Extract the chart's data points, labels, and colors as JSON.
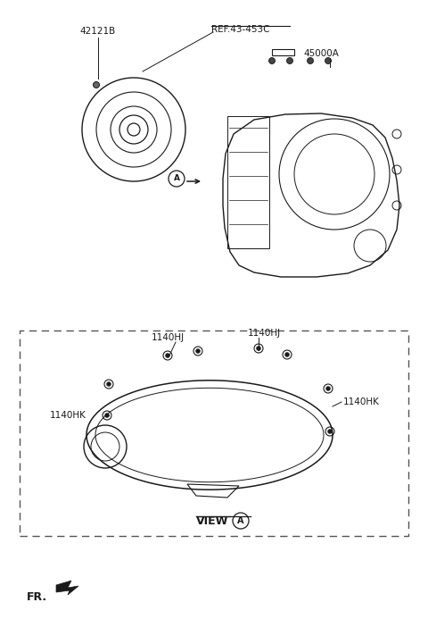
{
  "bg_color": "#ffffff",
  "line_color": "#1a1a1a",
  "label_42121B": "42121B",
  "label_ref": "REF.43-453C",
  "label_45000A": "45000A",
  "label_1140HJ_1": "1140HJ",
  "label_1140HJ_2": "1140HJ",
  "label_1140HK_1": "1140HK",
  "label_1140HK_2": "1140HK",
  "label_view_a": "VIEW",
  "label_fr": "FR.",
  "circle_A_label": "A",
  "circle_ViewA_label": "A"
}
